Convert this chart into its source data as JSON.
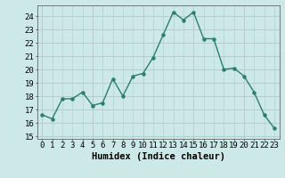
{
  "x": [
    0,
    1,
    2,
    3,
    4,
    5,
    6,
    7,
    8,
    9,
    10,
    11,
    12,
    13,
    14,
    15,
    16,
    17,
    18,
    19,
    20,
    21,
    22,
    23
  ],
  "y": [
    16.6,
    16.3,
    17.8,
    17.8,
    18.3,
    17.3,
    17.5,
    19.3,
    18.0,
    19.5,
    19.7,
    20.9,
    22.6,
    24.3,
    23.7,
    24.3,
    22.3,
    22.3,
    20.0,
    20.1,
    19.5,
    18.3,
    16.6,
    15.6
  ],
  "xlabel": "Humidex (Indice chaleur)",
  "ylabel_ticks": [
    15,
    16,
    17,
    18,
    19,
    20,
    21,
    22,
    23,
    24
  ],
  "ylim": [
    14.8,
    24.8
  ],
  "xlim": [
    -0.5,
    23.5
  ],
  "line_color": "#2d7d6e",
  "marker_color": "#2d7d6e",
  "bg_color": "#cce9e8",
  "grid_color": "#aed4d2",
  "major_grid_color": "#d4a8a8",
  "tick_label_fontsize": 6.5,
  "xlabel_fontsize": 7.5,
  "title": ""
}
